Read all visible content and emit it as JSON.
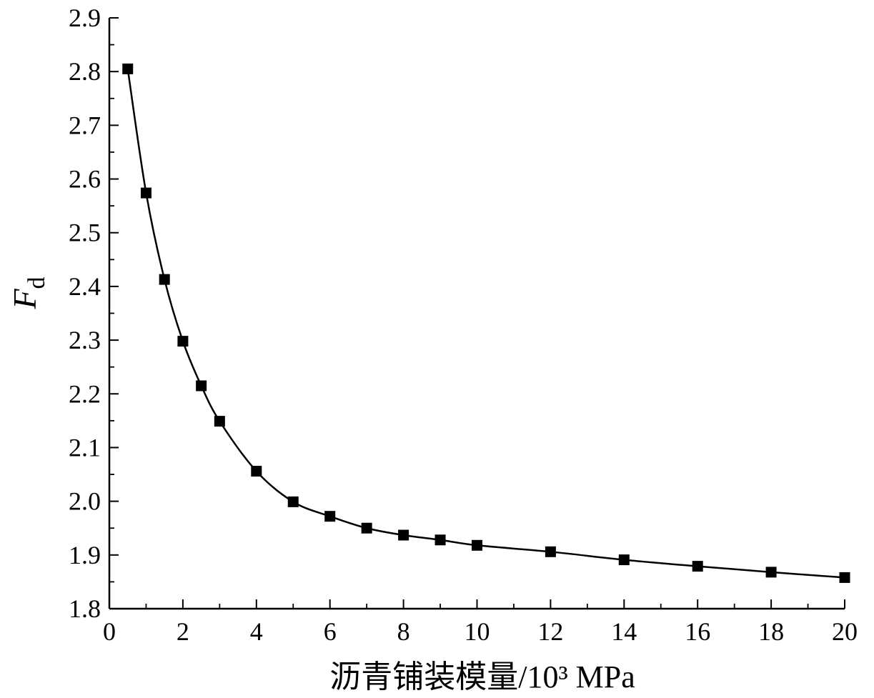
{
  "chart_data": {
    "type": "line",
    "title": "",
    "xlabel": "沥青铺装模量/10³ MPa",
    "ylabel": {
      "main": "F",
      "sub": "d"
    },
    "xlim": [
      0,
      20
    ],
    "ylim": [
      1.8,
      2.9
    ],
    "x_ticks": [
      "0",
      "2",
      "4",
      "6",
      "8",
      "10",
      "12",
      "14",
      "16",
      "18",
      "20"
    ],
    "y_ticks": [
      "1.8",
      "1.9",
      "2.0",
      "2.1",
      "2.2",
      "2.3",
      "2.4",
      "2.5",
      "2.6",
      "2.7",
      "2.8",
      "2.9"
    ],
    "grid": false,
    "legend": "none",
    "marker": "square",
    "line_color": "#000000",
    "series": [
      {
        "x": [
          0.5,
          1,
          1.5,
          2,
          2.5,
          3,
          4,
          5,
          6,
          7,
          8,
          9,
          10,
          12,
          14,
          16,
          18,
          20
        ],
        "y": [
          2.805,
          2.574,
          2.413,
          2.298,
          2.215,
          2.149,
          2.056,
          1.999,
          1.972,
          1.95,
          1.937,
          1.928,
          1.918,
          1.906,
          1.891,
          1.879,
          1.868,
          1.858
        ]
      }
    ]
  }
}
